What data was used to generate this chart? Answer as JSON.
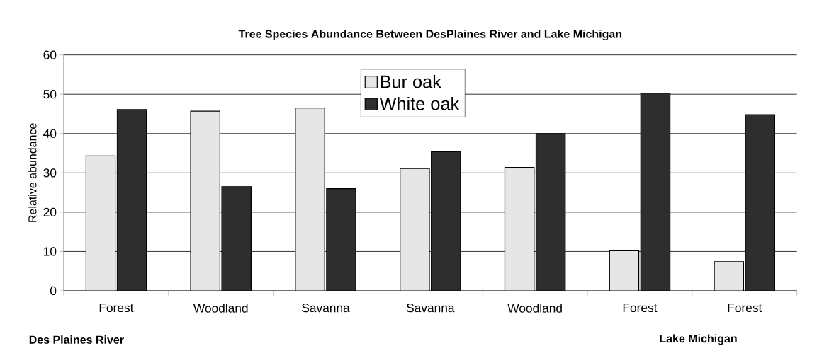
{
  "chart_data": {
    "type": "bar",
    "title": "Tree Species Abundance Between DesPlaines River and Lake Michigan",
    "ylabel": "Relative abundance",
    "categories": [
      "Forest",
      "Woodland",
      "Savanna",
      "Savanna",
      "Woodland",
      "Forest",
      "Forest"
    ],
    "series": [
      {
        "name": "Bur oak",
        "color": "#e6e6e6",
        "values": [
          34.3,
          45.7,
          46.5,
          31.1,
          31.4,
          10.2,
          7.4
        ]
      },
      {
        "name": "White oak",
        "color": "#2e2e2e",
        "values": [
          46.1,
          26.5,
          26.0,
          35.4,
          40.0,
          50.3,
          44.8
        ]
      }
    ],
    "ylim": [
      0,
      60
    ],
    "yticks": [
      0,
      10,
      20,
      30,
      40,
      50,
      60
    ],
    "grid": "y",
    "legend": "top",
    "annotations": [
      "Des Plaines River",
      "Lake Michigan"
    ]
  }
}
